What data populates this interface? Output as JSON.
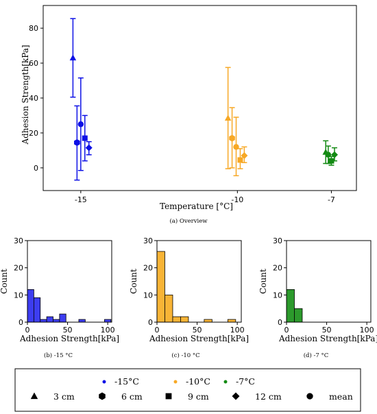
{
  "colors": {
    "c15": "#0d10e6",
    "c10": "#f7a825",
    "c7": "#138a13",
    "hist15": "#3d3df0",
    "hist10": "#f8b436",
    "hist7": "#2c9a2c"
  },
  "chart_data": [
    {
      "type": "scatter",
      "caption": "(a) Overview",
      "xlabel": "Temperature [°C]",
      "ylabel": "Adhesion Strength[kPa]",
      "xticks": [
        {
          "pos": -15,
          "label": "-15"
        },
        {
          "pos": -10,
          "label": "-10"
        },
        {
          "pos": -7,
          "label": "-7"
        }
      ],
      "yticks": [
        0,
        20,
        40,
        60,
        80
      ],
      "ylim": [
        -13,
        93
      ],
      "xlim": [
        -16.2,
        -6.2
      ],
      "series": [
        {
          "name": "-15°C",
          "color_key": "c15",
          "points": [
            {
              "marker": "triangle",
              "x": -15.25,
              "y": 63,
              "err_low": 40.5,
              "err_high": 85.5
            },
            {
              "marker": "hexagon",
              "x": -15.12,
              "y": 14.5,
              "err_low": -7,
              "err_high": 35.5
            },
            {
              "marker": "circle",
              "x": -15.0,
              "y": 25,
              "err_low": -1.5,
              "err_high": 51.5
            },
            {
              "marker": "square",
              "x": -14.87,
              "y": 17,
              "err_low": 4,
              "err_high": 30
            },
            {
              "marker": "diamond",
              "x": -14.74,
              "y": 11.5,
              "err_low": 7.5,
              "err_high": 15
            }
          ]
        },
        {
          "name": "-10°C",
          "color_key": "c10",
          "points": [
            {
              "marker": "triangle",
              "x": -10.3,
              "y": 28.5,
              "err_low": -0.5,
              "err_high": 57.5
            },
            {
              "marker": "hexagon",
              "x": -10.17,
              "y": 17,
              "err_low": 0,
              "err_high": 34.5
            },
            {
              "marker": "circle",
              "x": -10.04,
              "y": 12,
              "err_low": -4.5,
              "err_high": 29
            },
            {
              "marker": "square",
              "x": -9.91,
              "y": 4.5,
              "err_low": -0.5,
              "err_high": 11
            },
            {
              "marker": "diamond",
              "x": -9.78,
              "y": 7,
              "err_low": 3,
              "err_high": 12
            }
          ]
        },
        {
          "name": "-7°C",
          "color_key": "c7",
          "points": [
            {
              "marker": "triangle",
              "x": -7.18,
              "y": 9,
              "err_low": 2.5,
              "err_high": 15.5
            },
            {
              "marker": "circle",
              "x": -7.1,
              "y": 7.5,
              "err_low": 2.5,
              "err_high": 12.5
            },
            {
              "marker": "square",
              "x": -7.0,
              "y": 4,
              "err_low": 1.5,
              "err_high": 6.5
            },
            {
              "marker": "diamond",
              "x": -6.9,
              "y": 7.5,
              "err_low": 4,
              "err_high": 11.5
            }
          ]
        }
      ]
    },
    {
      "type": "bar",
      "caption": "(b) -15 °C",
      "xlabel": "Adhesion Strength[kPa]",
      "ylabel": "Count",
      "xlim": [
        0,
        105
      ],
      "ylim": [
        0,
        30
      ],
      "xticks": [
        0,
        50,
        100
      ],
      "yticks": [
        0,
        10,
        20,
        30
      ],
      "bin_width": 8,
      "bins": [
        0,
        8,
        16,
        24,
        32,
        40,
        48,
        56,
        64,
        72,
        80,
        88,
        96
      ],
      "counts": [
        12,
        9,
        1,
        2,
        1,
        3,
        0,
        0,
        1,
        0,
        0,
        0,
        1
      ],
      "color_key": "hist15"
    },
    {
      "type": "bar",
      "caption": "(c) -10 °C",
      "xlabel": "Adhesion Strength[kPa]",
      "ylabel": "Count",
      "xlim": [
        0,
        105
      ],
      "ylim": [
        0,
        30
      ],
      "xticks": [
        0,
        50,
        100
      ],
      "yticks": [
        0,
        10,
        20,
        30
      ],
      "bin_width": 9.8,
      "bins": [
        0,
        9.8,
        19.6,
        29.4,
        39.2,
        49,
        58.8,
        68.6,
        78.4,
        88.2
      ],
      "counts": [
        26,
        10,
        2,
        2,
        0,
        0,
        1,
        0,
        0,
        1
      ],
      "color_key": "hist10"
    },
    {
      "type": "bar",
      "caption": "(d) -7 °C",
      "xlabel": "Adhesion Strength[kPa]",
      "ylabel": "Count",
      "xlim": [
        0,
        105
      ],
      "ylim": [
        0,
        30
      ],
      "xticks": [
        0,
        50,
        100
      ],
      "yticks": [
        0,
        10,
        20,
        30
      ],
      "bin_width": 9.8,
      "bins": [
        0,
        9.8
      ],
      "counts": [
        12,
        5
      ],
      "color_key": "hist7"
    }
  ],
  "legend": {
    "colors": [
      {
        "label": "-15°C",
        "color_key": "c15"
      },
      {
        "label": "-10°C",
        "color_key": "c10"
      },
      {
        "label": "-7°C",
        "color_key": "c7"
      }
    ],
    "markers": [
      {
        "label": "3 cm",
        "marker": "triangle"
      },
      {
        "label": "6 cm",
        "marker": "hexagon"
      },
      {
        "label": "9 cm",
        "marker": "square"
      },
      {
        "label": "12 cm",
        "marker": "diamond"
      },
      {
        "label": "mean",
        "marker": "circle"
      }
    ]
  }
}
